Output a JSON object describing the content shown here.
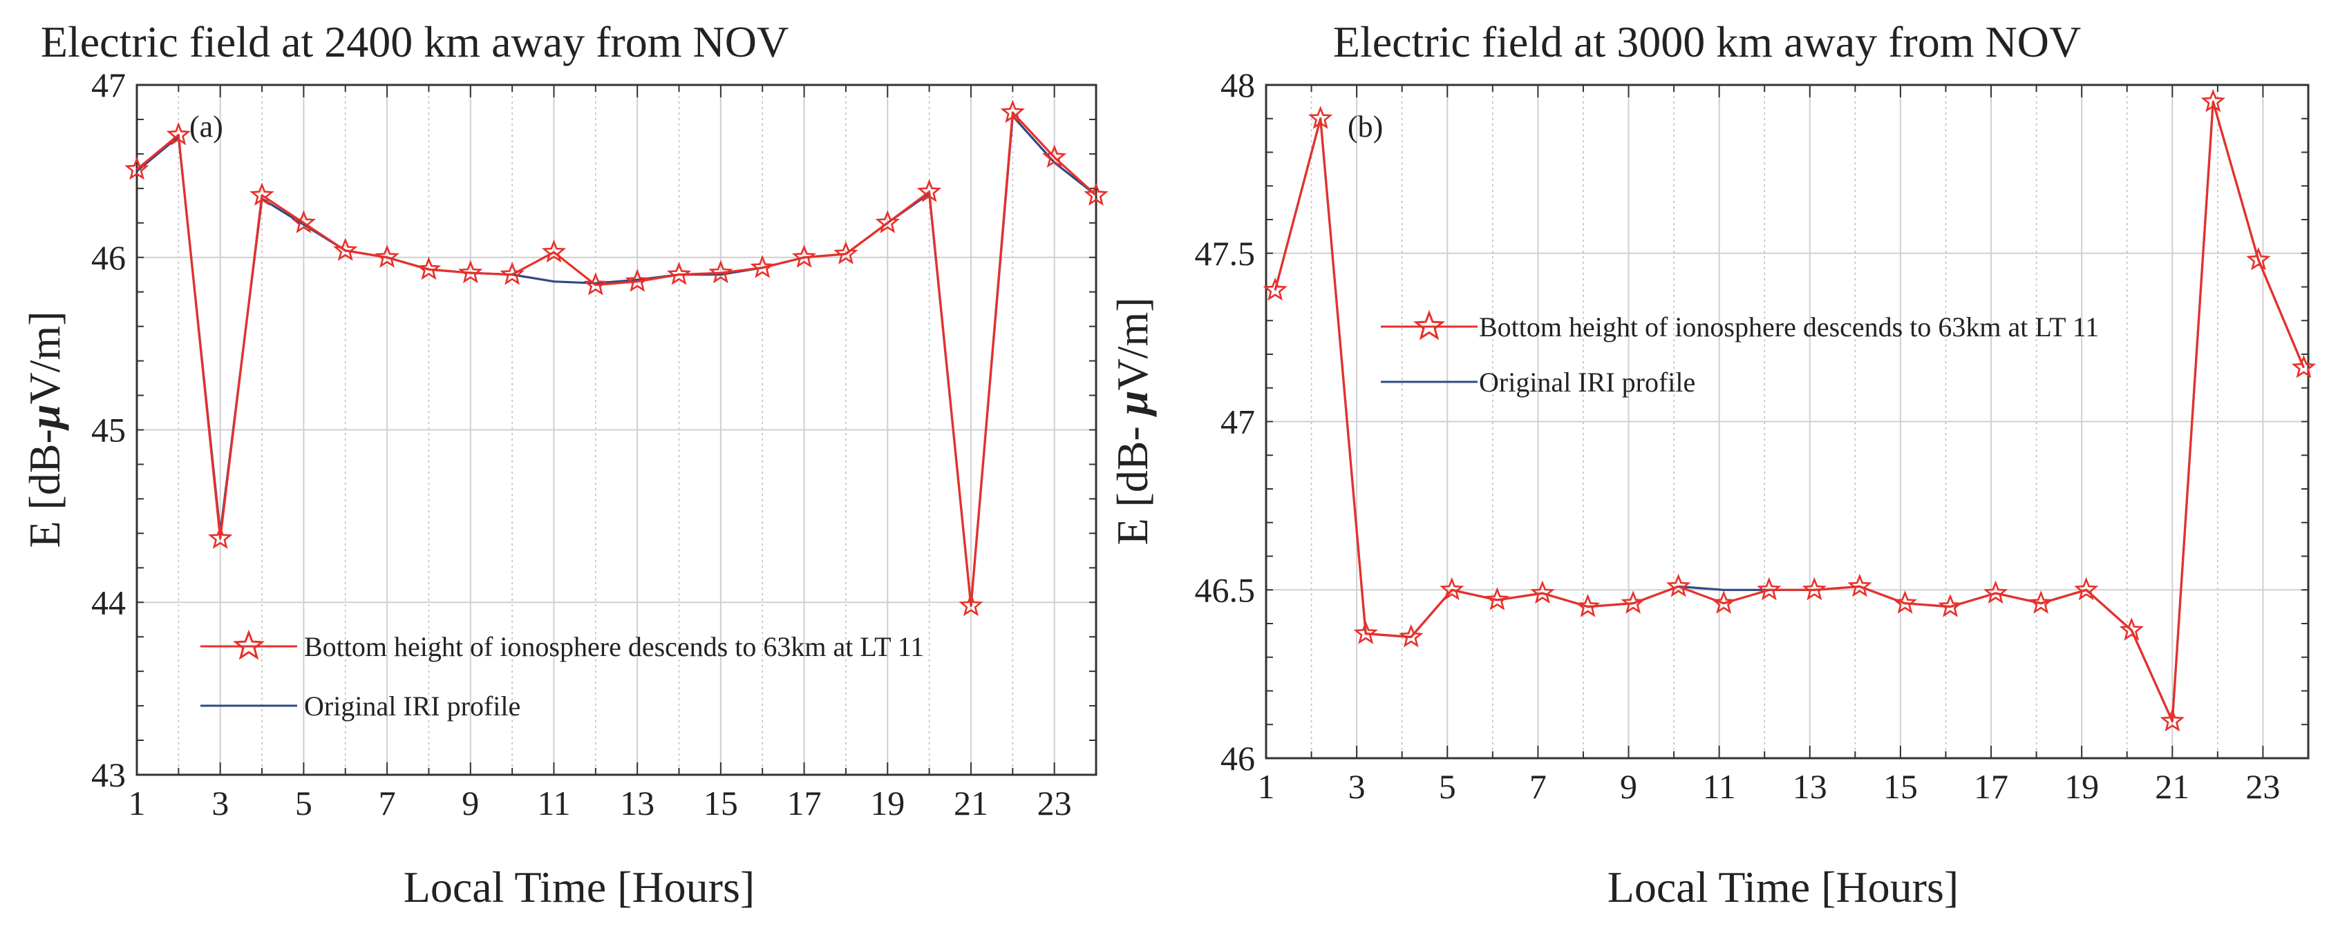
{
  "colors": {
    "modified": "#e8302a",
    "original": "#2e4a86",
    "grid_major": "#cfcfcf",
    "grid_minor": "#bdbdbd",
    "axis": "#333333"
  },
  "chart_data": [
    {
      "type": "line",
      "panel": "(a)",
      "title": "Electric field at 2400 km away from NOV",
      "xlabel": "Local Time [Hours]",
      "ylabel": "E [dB-μV/m]",
      "ylabel_parts": {
        "prefix": "E [dB-",
        "mu": "μ",
        "suffix": "V/m]"
      },
      "xlim": [
        1,
        24
      ],
      "ylim": [
        43,
        47
      ],
      "xticks": [
        1,
        3,
        5,
        7,
        9,
        11,
        13,
        15,
        17,
        19,
        21,
        23
      ],
      "yticks": [
        43,
        44,
        45,
        46,
        47
      ],
      "grid": true,
      "legend_position": "lower-center",
      "x": [
        1,
        2,
        3,
        4,
        5,
        6,
        7,
        8,
        9,
        10,
        11,
        12,
        13,
        14,
        15,
        16,
        17,
        18,
        19,
        20,
        21,
        22,
        23,
        24
      ],
      "series": [
        {
          "name": "Bottom height of ionosphere descends to 63km at LT 11",
          "marker": "star",
          "color": "#e8302a",
          "values": [
            46.51,
            46.71,
            44.37,
            46.36,
            46.2,
            46.04,
            46.0,
            45.93,
            45.91,
            45.9,
            46.03,
            45.84,
            45.86,
            45.9,
            45.91,
            45.94,
            46.0,
            46.02,
            46.2,
            46.38,
            43.98,
            46.84,
            46.58,
            46.36
          ]
        },
        {
          "name": "Original IRI profile",
          "marker": "none",
          "color": "#2e4a86",
          "values": [
            46.5,
            46.7,
            44.4,
            46.34,
            46.19,
            46.04,
            46.0,
            45.93,
            45.91,
            45.9,
            45.86,
            45.85,
            45.87,
            45.9,
            45.9,
            45.94,
            46.0,
            46.02,
            46.2,
            46.37,
            43.98,
            46.82,
            46.55,
            46.36
          ]
        }
      ]
    },
    {
      "type": "line",
      "panel": "(b)",
      "title": "Electric field at 3000 km away from NOV",
      "xlabel": "Local Time [Hours]",
      "ylabel": "E [dB- μV/m]",
      "ylabel_parts": {
        "prefix": "E [dB- ",
        "mu": "μ",
        "suffix": "V/m]"
      },
      "xlim": [
        1,
        24
      ],
      "ylim": [
        46,
        48
      ],
      "xticks": [
        1,
        3,
        5,
        7,
        9,
        11,
        13,
        15,
        17,
        19,
        21,
        23
      ],
      "yticks": [
        46,
        46.5,
        47,
        47.5,
        48
      ],
      "ytick_labels": [
        "46",
        "46.5",
        "47",
        "47.5",
        "48"
      ],
      "grid": true,
      "legend_position": "upper-center",
      "x": [
        1.2,
        2.2,
        3.2,
        4.2,
        5.1,
        6.1,
        7.1,
        8.1,
        9.1,
        10.1,
        11.1,
        12.1,
        13.1,
        14.1,
        15.1,
        16.1,
        17.1,
        18.1,
        19.1,
        20.1,
        21.0,
        21.9,
        22.9,
        23.9
      ],
      "series": [
        {
          "name": "Bottom height of ionosphere descends to 63km at LT 11",
          "marker": "star",
          "color": "#e8302a",
          "values": [
            47.39,
            47.9,
            46.37,
            46.36,
            46.5,
            46.47,
            46.49,
            46.45,
            46.46,
            46.51,
            46.46,
            46.5,
            46.5,
            46.51,
            46.46,
            46.45,
            46.49,
            46.46,
            46.5,
            46.38,
            46.11,
            47.95,
            47.48,
            47.16
          ]
        },
        {
          "name": "Original IRI profile",
          "marker": "none",
          "color": "#2e4a86",
          "values": [
            47.39,
            47.9,
            46.37,
            46.36,
            46.5,
            46.47,
            46.49,
            46.45,
            46.46,
            46.51,
            46.5,
            46.5,
            46.5,
            46.51,
            46.46,
            46.45,
            46.49,
            46.46,
            46.5,
            46.38,
            46.11,
            47.95,
            47.48,
            47.16
          ]
        }
      ]
    }
  ]
}
